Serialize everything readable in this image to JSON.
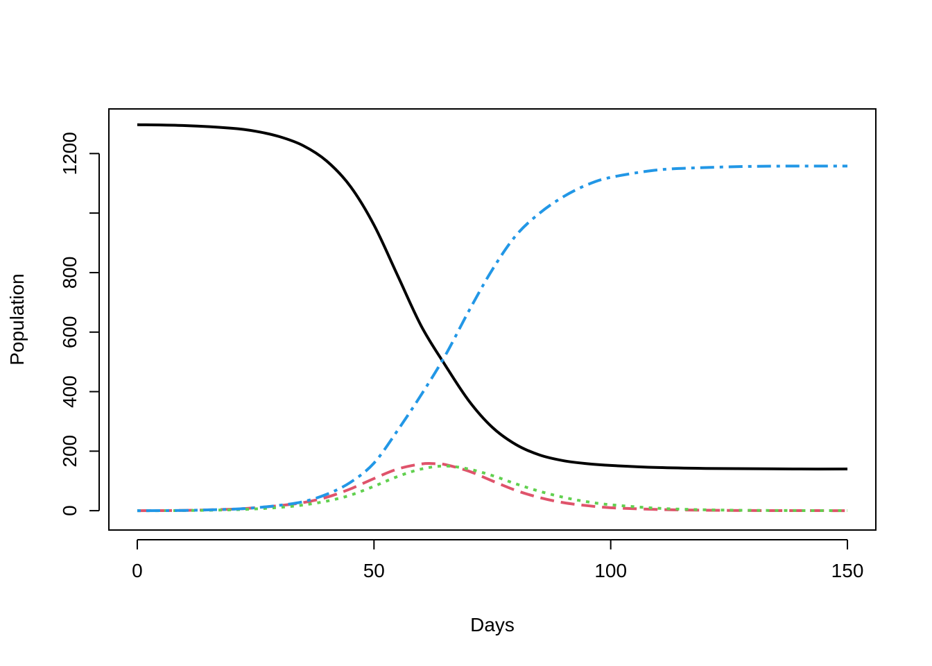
{
  "chart_data": {
    "type": "line",
    "title": "",
    "xlabel": "Days",
    "ylabel": "Population",
    "xlim": [
      -6,
      156
    ],
    "ylim": [
      -65,
      1350
    ],
    "x_ticks": [
      0,
      50,
      100,
      150
    ],
    "y_ticks": [
      0,
      200,
      400,
      600,
      800,
      1000,
      1200
    ],
    "y_tick_labels": [
      "0",
      "200",
      "400",
      "600",
      "800",
      "",
      "1200"
    ],
    "grid": false,
    "legend": "none",
    "series": [
      {
        "color": "#000000",
        "dash": "solid",
        "x": [
          0,
          10,
          20,
          25,
          30,
          35,
          40,
          45,
          50,
          55,
          60,
          65,
          70,
          75,
          80,
          85,
          90,
          95,
          100,
          110,
          120,
          130,
          140,
          150
        ],
        "y": [
          1297,
          1294,
          1285,
          1275,
          1257,
          1227,
          1175,
          1090,
          960,
          790,
          620,
          490,
          370,
          280,
          222,
          187,
          168,
          158,
          152,
          145,
          142,
          141,
          140,
          140
        ]
      },
      {
        "color": "#DF536B",
        "dash": "dashed",
        "x": [
          0,
          10,
          20,
          25,
          30,
          35,
          40,
          45,
          50,
          55,
          60,
          63,
          65,
          70,
          75,
          80,
          85,
          90,
          95,
          100,
          110,
          120,
          130,
          140,
          150
        ],
        "y": [
          0,
          1,
          5,
          10,
          17,
          27,
          45,
          73,
          108,
          140,
          157,
          158,
          155,
          133,
          100,
          68,
          44,
          27,
          17,
          10,
          4,
          1.5,
          0.5,
          0.2,
          0.1
        ]
      },
      {
        "color": "#61D04F",
        "dash": "dotted",
        "x": [
          0,
          10,
          20,
          25,
          30,
          35,
          40,
          45,
          50,
          55,
          60,
          65,
          70,
          75,
          80,
          85,
          90,
          95,
          100,
          110,
          120,
          130,
          140,
          150
        ],
        "y": [
          0,
          0.5,
          3,
          6,
          11,
          19,
          32,
          52,
          82,
          115,
          140,
          150,
          140,
          118,
          90,
          65,
          45,
          30,
          20,
          8,
          3,
          1,
          0.4,
          0.2
        ]
      },
      {
        "color": "#2297E6",
        "dash": "dotdash",
        "x": [
          0,
          10,
          20,
          25,
          30,
          35,
          40,
          45,
          50,
          55,
          60,
          65,
          70,
          75,
          80,
          85,
          90,
          95,
          100,
          110,
          120,
          130,
          140,
          150
        ],
        "y": [
          0,
          1,
          5,
          10,
          18,
          30,
          55,
          95,
          160,
          270,
          390,
          520,
          670,
          810,
          925,
          1000,
          1055,
          1095,
          1120,
          1145,
          1153,
          1157,
          1158,
          1158
        ]
      }
    ]
  }
}
